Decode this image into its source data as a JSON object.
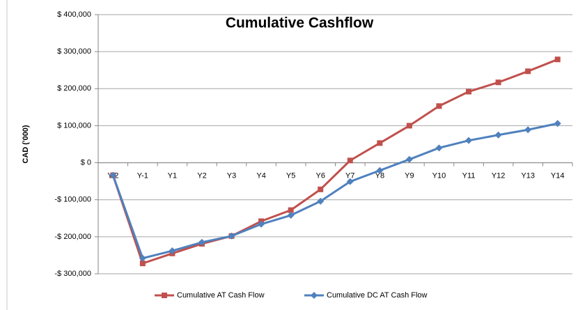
{
  "chart_data": {
    "type": "line",
    "title": "Cumulative Cashflow",
    "y_label": "CAD ('000)",
    "categories": [
      "Y-2",
      "Y-1",
      "Y1",
      "Y2",
      "Y3",
      "Y4",
      "Y5",
      "Y6",
      "Y7",
      "Y8",
      "Y9",
      "Y10",
      "Y11",
      "Y12",
      "Y13",
      "Y14"
    ],
    "series": [
      {
        "name": "Cumulative AT Cash Flow",
        "color": "#c0504d",
        "marker": "square",
        "values": [
          -34000,
          -272000,
          -245000,
          -219000,
          -198000,
          -158000,
          -128000,
          -72000,
          6000,
          53000,
          100000,
          153000,
          192000,
          217000,
          247000,
          279000
        ]
      },
      {
        "name": "Cumulative DC AT Cash Flow",
        "color": "#4f81bd",
        "marker": "diamond",
        "values": [
          -34000,
          -258000,
          -238000,
          -215000,
          -198000,
          -166000,
          -142000,
          -104000,
          -51000,
          -21000,
          9000,
          40000,
          60000,
          75000,
          89000,
          106000
        ]
      }
    ],
    "ylim": [
      -300000,
      400000
    ],
    "yticks": [
      {
        "value": -300000,
        "label": "-$ 300,000"
      },
      {
        "value": -200000,
        "label": "-$ 200,000"
      },
      {
        "value": -100000,
        "label": "-$ 100,000"
      },
      {
        "value": 0,
        "label": "$ 0"
      },
      {
        "value": 100000,
        "label": "$ 100,000"
      },
      {
        "value": 200000,
        "label": "$ 200,000"
      },
      {
        "value": 300000,
        "label": "$ 300,000"
      },
      {
        "value": 400000,
        "label": "$ 400,000"
      }
    ],
    "grid": true,
    "legend": "bottom"
  }
}
